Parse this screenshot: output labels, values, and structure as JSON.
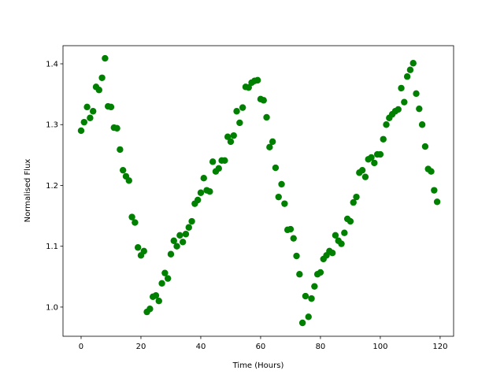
{
  "chart_data": {
    "type": "scatter",
    "x_label": "Time (Hours)",
    "y_label": "Normalised Flux",
    "color": "#008000",
    "x": [
      0,
      1,
      2,
      3,
      4,
      5,
      6,
      7,
      8,
      9,
      10,
      11,
      12,
      13,
      14,
      15,
      16,
      17,
      18,
      19,
      20,
      21,
      22,
      23,
      24,
      25,
      26,
      27,
      28,
      29,
      30,
      31,
      32,
      33,
      34,
      35,
      36,
      37,
      38,
      39,
      40,
      41,
      42,
      43,
      44,
      45,
      46,
      47,
      48,
      49,
      50,
      51,
      52,
      53,
      54,
      55,
      56,
      57,
      58,
      59,
      60,
      61,
      62,
      63,
      64,
      65,
      66,
      67,
      68,
      69,
      70,
      71,
      72,
      73,
      74,
      75,
      76,
      77,
      78,
      79,
      80,
      81,
      82,
      83,
      84,
      85,
      86,
      87,
      88,
      89,
      90,
      91,
      92,
      93,
      94,
      95,
      96,
      97,
      98,
      99,
      100,
      101,
      102,
      103,
      104,
      105,
      106,
      107,
      108,
      109,
      110,
      111,
      112,
      113,
      114,
      115,
      116,
      117,
      118,
      119
    ],
    "values": [
      1.29,
      1.304,
      1.329,
      1.311,
      1.322,
      1.362,
      1.357,
      1.377,
      1.409,
      1.33,
      1.329,
      1.295,
      1.294,
      1.259,
      1.225,
      1.215,
      1.208,
      1.148,
      1.139,
      1.098,
      1.085,
      1.092,
      0.992,
      0.997,
      1.017,
      1.019,
      1.01,
      1.039,
      1.056,
      1.047,
      1.087,
      1.109,
      1.1,
      1.118,
      1.107,
      1.12,
      1.131,
      1.141,
      1.17,
      1.176,
      1.188,
      1.212,
      1.192,
      1.19,
      1.239,
      1.223,
      1.228,
      1.241,
      1.241,
      1.28,
      1.272,
      1.282,
      1.322,
      1.303,
      1.328,
      1.362,
      1.361,
      1.369,
      1.372,
      1.373,
      1.342,
      1.34,
      1.312,
      1.263,
      1.272,
      1.229,
      1.181,
      1.202,
      1.17,
      1.127,
      1.128,
      1.113,
      1.084,
      1.054,
      0.974,
      1.018,
      0.984,
      1.014,
      1.034,
      1.054,
      1.057,
      1.079,
      1.085,
      1.092,
      1.089,
      1.118,
      1.109,
      1.104,
      1.122,
      1.145,
      1.141,
      1.172,
      1.181,
      1.221,
      1.225,
      1.214,
      1.243,
      1.246,
      1.237,
      1.251,
      1.251,
      1.276,
      1.3,
      1.311,
      1.317,
      1.322,
      1.325,
      1.36,
      1.337,
      1.379,
      1.39,
      1.401,
      1.351,
      1.326,
      1.3,
      1.264,
      1.227,
      1.223,
      1.192,
      1.173
    ],
    "xlim": [
      -6.05,
      124.5
    ],
    "xticks": [
      0,
      20,
      40,
      60,
      80,
      100,
      120
    ],
    "ylim": [
      0.952,
      1.4298
    ],
    "yticks": [
      {
        "value": 1,
        "label": "1.0"
      },
      1.1,
      1.2,
      1.3,
      1.4
    ]
  }
}
